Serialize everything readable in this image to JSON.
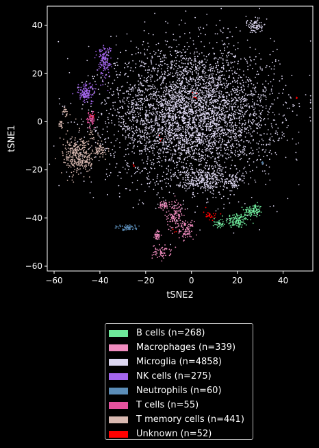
{
  "chart_data": {
    "type": "scatter",
    "title": "",
    "xlabel": "tSNE2",
    "ylabel": "tSNE1",
    "xlim": [
      -63,
      53
    ],
    "ylim": [
      -62,
      48
    ],
    "xticks": [
      -60,
      -40,
      -20,
      0,
      20,
      40
    ],
    "yticks": [
      -60,
      -40,
      -20,
      0,
      20,
      40
    ],
    "background": "#000000",
    "axis_color": "#ffffff",
    "grid": false,
    "legend_position": "below",
    "series": [
      {
        "name": "B cells (n=268)",
        "count": 268,
        "color": "#6ee89a",
        "clusters": [
          {
            "cx": 20,
            "cy": -41,
            "sx": 2.5,
            "sy": 1.6,
            "n": 120
          },
          {
            "cx": 27,
            "cy": -37,
            "sx": 2.0,
            "sy": 1.4,
            "n": 110
          },
          {
            "cx": 12,
            "cy": -42.5,
            "sx": 1.0,
            "sy": 0.8,
            "n": 38
          }
        ]
      },
      {
        "name": "Macrophages (n=339)",
        "count": 339,
        "color": "#f08cbf",
        "clusters": [
          {
            "cx": -7,
            "cy": -39,
            "sx": 1.8,
            "sy": 3.2,
            "n": 120
          },
          {
            "cx": -2,
            "cy": -45,
            "sx": 1.5,
            "sy": 1.8,
            "n": 80
          },
          {
            "cx": -12,
            "cy": -35,
            "sx": 1.5,
            "sy": 1.0,
            "n": 40
          },
          {
            "cx": -13,
            "cy": -54,
            "sx": 2.0,
            "sy": 1.4,
            "n": 60
          },
          {
            "cx": -15,
            "cy": -47,
            "sx": 0.6,
            "sy": 1.0,
            "n": 39
          }
        ]
      },
      {
        "name": "Microglia (n=4858)",
        "count": 4858,
        "color": "#dcd6f0",
        "clusters": [
          {
            "cx": 0,
            "cy": 3,
            "sx": 18,
            "sy": 14,
            "n": 4450
          },
          {
            "cx": 28,
            "cy": 40,
            "sx": 1.6,
            "sy": 1.5,
            "n": 80
          },
          {
            "cx": 18,
            "cy": -25,
            "sx": 1.5,
            "sy": 1.5,
            "n": 50
          },
          {
            "cx": 5,
            "cy": -24,
            "sx": 6,
            "sy": 2,
            "n": 278
          }
        ]
      },
      {
        "name": "NK cells (n=275)",
        "count": 275,
        "color": "#a466ee",
        "clusters": [
          {
            "cx": -38,
            "cy": 25,
            "sx": 1.5,
            "sy": 3.5,
            "n": 140
          },
          {
            "cx": -46,
            "cy": 12,
            "sx": 2.0,
            "sy": 2.0,
            "n": 135
          }
        ]
      },
      {
        "name": "Neutrophils (n=60)",
        "count": 60,
        "color": "#5b8db8",
        "clusters": [
          {
            "cx": -28,
            "cy": -44,
            "sx": 2.5,
            "sy": 0.6,
            "n": 55
          },
          {
            "cx": 31,
            "cy": -17,
            "sx": 0.3,
            "sy": 0.3,
            "n": 5
          }
        ]
      },
      {
        "name": "T cells (n=55)",
        "count": 55,
        "color": "#e4529e",
        "clusters": [
          {
            "cx": -44,
            "cy": 1,
            "sx": 0.8,
            "sy": 1.8,
            "n": 55
          }
        ]
      },
      {
        "name": "T memory cells (n=441)",
        "count": 441,
        "color": "#d9b9b1",
        "clusters": [
          {
            "cx": -49,
            "cy": -14,
            "sx": 3.5,
            "sy": 4,
            "n": 330
          },
          {
            "cx": -40,
            "cy": -12,
            "sx": 1.2,
            "sy": 1.5,
            "n": 60
          },
          {
            "cx": -55,
            "cy": 4,
            "sx": 0.8,
            "sy": 1.2,
            "n": 20
          },
          {
            "cx": -57,
            "cy": -1,
            "sx": 0.6,
            "sy": 0.8,
            "n": 20
          },
          {
            "cx": -44,
            "cy": -5,
            "sx": 0.6,
            "sy": 1.0,
            "n": 11
          }
        ]
      },
      {
        "name": "Unknown (n=52)",
        "count": 52,
        "color": "#ff0000",
        "clusters": [
          {
            "cx": 8,
            "cy": -39,
            "sx": 1.5,
            "sy": 1.0,
            "n": 30
          },
          {
            "cx": 1,
            "cy": 11,
            "sx": 1.0,
            "sy": 1.0,
            "n": 6
          },
          {
            "cx": 46,
            "cy": 10,
            "sx": 0.2,
            "sy": 0.2,
            "n": 3
          },
          {
            "cx": -7,
            "cy": -45,
            "sx": 0.5,
            "sy": 0.5,
            "n": 3
          },
          {
            "cx": -25,
            "cy": -18,
            "sx": 0.3,
            "sy": 0.3,
            "n": 3
          },
          {
            "cx": -44,
            "cy": 3,
            "sx": 0.5,
            "sy": 0.5,
            "n": 4
          },
          {
            "cx": -12,
            "cy": -7,
            "sx": 1.0,
            "sy": 1.0,
            "n": 3
          }
        ]
      }
    ]
  }
}
